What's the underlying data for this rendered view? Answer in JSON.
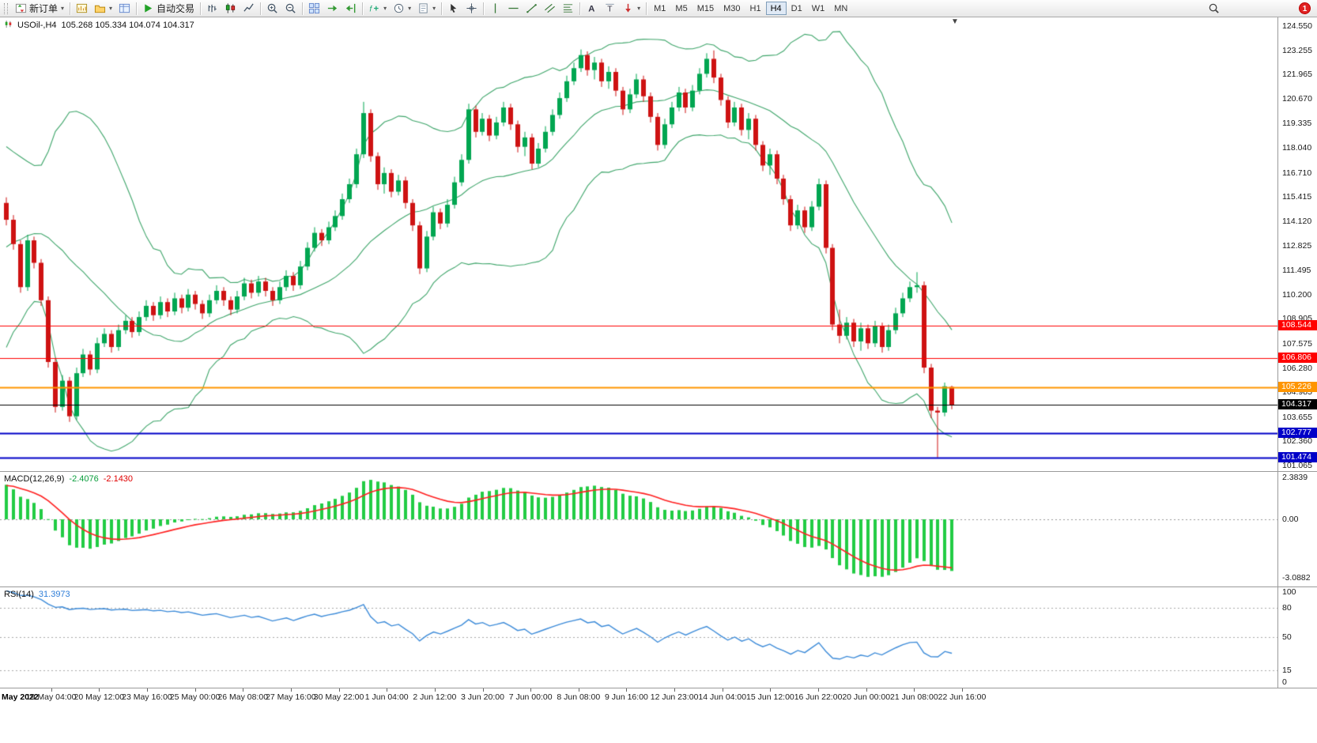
{
  "toolbar": {
    "new_order_label": "新订单",
    "autotrading_label": "自动交易",
    "timeframes": {
      "items": [
        "M1",
        "M5",
        "M15",
        "M30",
        "H1",
        "H4",
        "D1",
        "W1",
        "MN"
      ],
      "active": "H4"
    },
    "notification_badge": "1",
    "groups": [
      {
        "buttons": [
          {
            "name": "new-order-button",
            "icon": "new-order-icon",
            "label": "新订单",
            "dropdown": true
          }
        ]
      },
      {
        "buttons": [
          {
            "name": "chart-window-button",
            "icon": "chart-window-icon"
          },
          {
            "name": "profiles-button",
            "icon": "profiles-icon",
            "dropdown": true
          },
          {
            "name": "data-window-button",
            "icon": "data-window-icon"
          }
        ]
      },
      {
        "buttons": [
          {
            "name": "autotrading-button",
            "icon": "play-icon",
            "label": "自动交易"
          }
        ]
      },
      {
        "buttons": [
          {
            "name": "bar-chart-button",
            "icon": "bar-chart-icon"
          },
          {
            "name": "candlestick-button",
            "icon": "candlestick-icon"
          },
          {
            "name": "line-chart-button",
            "icon": "line-chart-icon"
          }
        ]
      },
      {
        "buttons": [
          {
            "name": "zoom-in-button",
            "icon": "zoom-in-icon"
          },
          {
            "name": "zoom-out-button",
            "icon": "zoom-out-icon"
          }
        ]
      },
      {
        "buttons": [
          {
            "name": "tile-windows-button",
            "icon": "tile-windows-icon"
          },
          {
            "name": "auto-scroll-button",
            "icon": "auto-scroll-icon"
          },
          {
            "name": "chart-shift-button",
            "icon": "chart-shift-icon"
          }
        ]
      },
      {
        "buttons": [
          {
            "name": "indicators-button",
            "icon": "indicators-icon",
            "dropdown": true
          },
          {
            "name": "periods-button",
            "icon": "periods-icon",
            "dropdown": true
          },
          {
            "name": "templates-button",
            "icon": "templates-icon",
            "dropdown": true
          }
        ]
      },
      {
        "buttons": [
          {
            "name": "cursor-button",
            "icon": "cursor-icon"
          },
          {
            "name": "crosshair-button",
            "icon": "crosshair-icon"
          }
        ]
      },
      {
        "buttons": [
          {
            "name": "vertical-line-button",
            "icon": "vertical-line-icon"
          },
          {
            "name": "horizontal-line-button",
            "icon": "horizontal-line-icon"
          },
          {
            "name": "trendline-button",
            "icon": "trendline-icon"
          },
          {
            "name": "channel-button",
            "icon": "channel-icon"
          },
          {
            "name": "fibonacci-button",
            "icon": "fibonacci-icon"
          }
        ]
      },
      {
        "buttons": [
          {
            "name": "text-button",
            "icon": "text-icon"
          },
          {
            "name": "label-button",
            "icon": "label-icon"
          },
          {
            "name": "arrows-button",
            "icon": "arrow-icon",
            "dropdown": true
          }
        ]
      },
      {
        "type": "timeframes"
      }
    ]
  },
  "chart": {
    "symbol_info": "USOil-,H4",
    "ohlc_text": "105.268 105.334 104.074 104.317"
  },
  "macd_panel": {
    "label": "MACD(12,26,9)",
    "value_main": "-2.4076",
    "value_signal": "-2.1430"
  },
  "rsi_panel": {
    "label": "RSI(14)",
    "value": "31.3973"
  },
  "chart_data": {
    "type": "candlestick",
    "symbol": "USOil-",
    "timeframe": "H4",
    "last_ohlc": {
      "open": 105.268,
      "high": 105.334,
      "low": 104.074,
      "close": 104.317
    },
    "price_ticks": [
      "124.550",
      "123.255",
      "121.965",
      "120.670",
      "119.335",
      "118.040",
      "116.710",
      "115.415",
      "114.120",
      "112.825",
      "111.495",
      "110.200",
      "108.905",
      "107.575",
      "106.280",
      "104.985",
      "103.655",
      "102.360",
      "101.065"
    ],
    "time_labels": [
      "May 2022",
      "19 May 04:00",
      "20 May 12:00",
      "23 May 16:00",
      "25 May 00:00",
      "26 May 08:00",
      "27 May 16:00",
      "30 May 22:00",
      "1 Jun 04:00",
      "2 Jun 12:00",
      "3 Jun 20:00",
      "7 Jun 00:00",
      "8 Jun 08:00",
      "9 Jun 16:00",
      "12 Jun 23:00",
      "14 Jun 04:00",
      "15 Jun 12:00",
      "16 Jun 22:00",
      "20 Jun 00:00",
      "21 Jun 08:00",
      "22 Jun 16:00"
    ],
    "horizontal_lines": [
      {
        "name": "resistance-upper-line",
        "value": 108.544,
        "label": "108.544",
        "color": "#FF0000",
        "width": 1
      },
      {
        "name": "resistance-lower-line",
        "value": 106.806,
        "label": "106.806",
        "color": "#FF0000",
        "width": 1
      },
      {
        "name": "pivot-line",
        "value": 105.226,
        "label": "105.226",
        "color": "#FF9500",
        "width": 2
      },
      {
        "name": "bid-price-line",
        "value": 104.317,
        "label": "104.317",
        "color": "#000000",
        "width": 1
      },
      {
        "name": "support-upper-line",
        "value": 102.777,
        "label": "102.777",
        "color": "#0000C8",
        "width": 2
      },
      {
        "name": "support-lower-line",
        "value": 101.474,
        "label": "101.474",
        "color": "#0000C8",
        "width": 2
      }
    ],
    "indicators": {
      "bollinger": {
        "period": 20,
        "deviation": 2,
        "color": "#3FA66B"
      },
      "macd": {
        "params": "12,26,9",
        "value": -2.4076,
        "signal_value": -2.143,
        "axis": [
          "2.3839",
          "0.00",
          "-3.0882"
        ],
        "hist_color": "#22CC44",
        "signal_color": "#FF2020"
      },
      "rsi": {
        "period": 14,
        "value": 31.3973,
        "axis": [
          "100",
          "80",
          "50",
          "15",
          "0"
        ],
        "levels": [
          80,
          50,
          15
        ],
        "color": "#3C8BD9"
      }
    },
    "colors": {
      "up": "#00A651",
      "down": "#CE1212",
      "background": "#FFFFFF"
    },
    "indicator_seed_closes": [
      107.6,
      108.2,
      108.8,
      109.5,
      110.1,
      110.8,
      111.4,
      112.0,
      112.7,
      113.3,
      113.9,
      114.4,
      114.9,
      115.3,
      115.7,
      115.9,
      115.6,
      115.2,
      115.4
    ],
    "ohlc": [
      [
        115.1,
        115.4,
        113.9,
        114.2
      ],
      [
        114.2,
        114.45,
        112.6,
        112.9
      ],
      [
        112.9,
        113.1,
        110.3,
        110.6
      ],
      [
        110.6,
        113.4,
        110.4,
        113.1
      ],
      [
        113.1,
        113.3,
        111.6,
        111.9
      ],
      [
        111.9,
        112.1,
        109.6,
        109.9
      ],
      [
        109.9,
        110.1,
        106.3,
        106.6
      ],
      [
        106.6,
        106.8,
        103.9,
        104.2
      ],
      [
        104.2,
        105.9,
        104.0,
        105.6
      ],
      [
        105.6,
        105.8,
        103.4,
        103.7
      ],
      [
        103.7,
        106.3,
        103.5,
        106.0
      ],
      [
        106.0,
        107.3,
        105.8,
        107.0
      ],
      [
        107.0,
        107.2,
        105.9,
        106.2
      ],
      [
        106.2,
        107.9,
        106.0,
        107.6
      ],
      [
        107.6,
        108.4,
        107.4,
        108.1
      ],
      [
        108.1,
        108.3,
        107.1,
        107.4
      ],
      [
        107.4,
        108.6,
        107.2,
        108.3
      ],
      [
        108.3,
        109.1,
        108.1,
        108.8
      ],
      [
        108.8,
        109.0,
        107.9,
        108.2
      ],
      [
        108.2,
        109.3,
        108.0,
        109.0
      ],
      [
        109.0,
        109.9,
        108.8,
        109.6
      ],
      [
        109.6,
        109.8,
        108.8,
        109.1
      ],
      [
        109.1,
        110.1,
        108.9,
        109.8
      ],
      [
        109.8,
        110.0,
        109.0,
        109.3
      ],
      [
        109.3,
        110.3,
        109.1,
        110.0
      ],
      [
        110.0,
        110.2,
        109.2,
        109.5
      ],
      [
        109.5,
        110.5,
        109.3,
        110.2
      ],
      [
        110.2,
        110.4,
        109.4,
        109.7
      ],
      [
        109.7,
        109.9,
        108.9,
        109.2
      ],
      [
        109.2,
        110.2,
        109.0,
        109.9
      ],
      [
        109.9,
        110.7,
        109.7,
        110.4
      ],
      [
        110.4,
        110.6,
        109.6,
        109.9
      ],
      [
        109.9,
        110.1,
        109.1,
        109.4
      ],
      [
        109.4,
        110.4,
        109.2,
        110.1
      ],
      [
        110.1,
        111.1,
        109.9,
        110.8
      ],
      [
        110.8,
        111.0,
        110.0,
        110.3
      ],
      [
        110.3,
        111.2,
        110.1,
        110.9
      ],
      [
        110.9,
        111.1,
        110.1,
        110.4
      ],
      [
        110.4,
        110.6,
        109.6,
        109.9
      ],
      [
        109.9,
        110.9,
        109.7,
        110.6
      ],
      [
        110.6,
        111.5,
        110.4,
        111.2
      ],
      [
        111.2,
        111.4,
        110.4,
        110.7
      ],
      [
        110.7,
        112.0,
        110.5,
        111.7
      ],
      [
        111.7,
        113.0,
        111.5,
        112.7
      ],
      [
        112.7,
        113.8,
        112.5,
        113.5
      ],
      [
        113.5,
        113.7,
        112.8,
        113.1
      ],
      [
        113.1,
        114.1,
        112.9,
        113.8
      ],
      [
        113.8,
        114.7,
        113.6,
        114.4
      ],
      [
        114.4,
        115.6,
        114.2,
        115.3
      ],
      [
        115.3,
        116.4,
        115.1,
        116.1
      ],
      [
        116.1,
        118.0,
        115.9,
        117.7
      ],
      [
        117.7,
        120.5,
        117.5,
        119.9
      ],
      [
        119.9,
        120.1,
        117.3,
        117.6
      ],
      [
        117.6,
        117.8,
        115.8,
        116.1
      ],
      [
        116.1,
        117.0,
        115.6,
        116.7
      ],
      [
        116.7,
        116.9,
        115.4,
        115.7
      ],
      [
        115.7,
        116.6,
        115.5,
        116.3
      ],
      [
        116.3,
        116.5,
        114.8,
        115.1
      ],
      [
        115.1,
        115.3,
        113.6,
        113.9
      ],
      [
        113.9,
        114.1,
        111.3,
        111.6
      ],
      [
        111.6,
        113.6,
        111.4,
        113.3
      ],
      [
        113.3,
        114.9,
        113.1,
        114.6
      ],
      [
        114.6,
        114.8,
        113.7,
        114.0
      ],
      [
        114.0,
        115.3,
        113.8,
        115.0
      ],
      [
        115.0,
        116.5,
        114.8,
        116.2
      ],
      [
        116.2,
        117.7,
        116.0,
        117.4
      ],
      [
        117.4,
        120.4,
        117.2,
        120.1
      ],
      [
        120.1,
        120.3,
        118.6,
        118.9
      ],
      [
        118.9,
        119.9,
        118.7,
        119.6
      ],
      [
        119.6,
        119.8,
        118.4,
        118.7
      ],
      [
        118.7,
        119.7,
        118.5,
        119.4
      ],
      [
        119.4,
        120.5,
        119.2,
        120.2
      ],
      [
        120.2,
        120.4,
        119.0,
        119.3
      ],
      [
        119.3,
        119.5,
        117.8,
        118.1
      ],
      [
        118.1,
        118.9,
        117.6,
        118.6
      ],
      [
        118.6,
        118.8,
        116.9,
        117.2
      ],
      [
        117.2,
        118.3,
        117.0,
        118.0
      ],
      [
        118.0,
        119.2,
        117.8,
        118.9
      ],
      [
        118.9,
        120.1,
        118.7,
        119.8
      ],
      [
        119.8,
        121.0,
        119.6,
        120.7
      ],
      [
        120.7,
        121.9,
        120.5,
        121.6
      ],
      [
        121.6,
        122.6,
        121.4,
        122.3
      ],
      [
        122.3,
        123.3,
        122.1,
        123.0
      ],
      [
        123.0,
        123.2,
        121.9,
        122.2
      ],
      [
        122.2,
        122.9,
        121.7,
        122.6
      ],
      [
        122.6,
        122.8,
        121.3,
        121.6
      ],
      [
        121.6,
        122.4,
        121.2,
        122.1
      ],
      [
        122.1,
        122.3,
        120.8,
        121.1
      ],
      [
        121.1,
        121.3,
        119.8,
        120.1
      ],
      [
        120.1,
        121.2,
        119.9,
        120.9
      ],
      [
        120.9,
        122.0,
        120.7,
        121.7
      ],
      [
        121.7,
        121.9,
        120.5,
        120.8
      ],
      [
        120.8,
        121.0,
        119.4,
        119.7
      ],
      [
        119.7,
        119.9,
        117.9,
        118.2
      ],
      [
        118.2,
        119.6,
        118.0,
        119.3
      ],
      [
        119.3,
        120.5,
        119.1,
        120.2
      ],
      [
        120.2,
        121.3,
        120.0,
        121.0
      ],
      [
        121.0,
        121.2,
        119.9,
        120.2
      ],
      [
        120.2,
        121.4,
        120.0,
        121.1
      ],
      [
        121.1,
        122.3,
        120.9,
        122.0
      ],
      [
        122.0,
        123.1,
        121.8,
        122.8
      ],
      [
        122.8,
        123.25,
        121.5,
        121.8
      ],
      [
        121.8,
        122.0,
        120.3,
        120.6
      ],
      [
        120.6,
        120.8,
        119.1,
        119.4
      ],
      [
        119.4,
        120.5,
        119.2,
        120.2
      ],
      [
        120.2,
        120.4,
        118.7,
        119.0
      ],
      [
        119.0,
        119.9,
        118.5,
        119.6
      ],
      [
        119.6,
        119.8,
        117.9,
        118.2
      ],
      [
        118.2,
        118.4,
        116.8,
        117.1
      ],
      [
        117.1,
        118.0,
        116.6,
        117.7
      ],
      [
        117.7,
        117.9,
        116.1,
        116.4
      ],
      [
        116.4,
        116.6,
        115.0,
        115.3
      ],
      [
        115.3,
        115.5,
        113.6,
        113.9
      ],
      [
        113.9,
        115.0,
        113.7,
        114.7
      ],
      [
        114.7,
        114.9,
        113.5,
        113.8
      ],
      [
        113.8,
        115.2,
        113.6,
        114.9
      ],
      [
        114.9,
        116.4,
        114.7,
        116.1
      ],
      [
        116.1,
        116.3,
        112.4,
        112.7
      ],
      [
        112.7,
        112.9,
        108.3,
        108.6
      ],
      [
        108.6,
        109.4,
        107.6,
        108.0
      ],
      [
        108.0,
        109.0,
        107.8,
        108.7
      ],
      [
        108.7,
        108.9,
        107.4,
        107.7
      ],
      [
        107.7,
        108.7,
        107.2,
        108.4
      ],
      [
        108.4,
        108.6,
        107.3,
        107.6
      ],
      [
        107.6,
        108.8,
        107.4,
        108.5
      ],
      [
        108.5,
        108.7,
        107.1,
        107.4
      ],
      [
        107.4,
        108.6,
        107.2,
        108.3
      ],
      [
        108.3,
        109.5,
        108.1,
        109.2
      ],
      [
        109.2,
        110.3,
        109.0,
        110.0
      ],
      [
        110.0,
        110.9,
        109.8,
        110.6
      ],
      [
        110.6,
        111.4,
        110.3,
        110.7
      ],
      [
        110.7,
        110.9,
        106.0,
        106.3
      ],
      [
        106.3,
        106.5,
        103.6,
        104.0
      ],
      [
        104.0,
        104.2,
        101.5,
        103.9
      ],
      [
        103.9,
        105.5,
        103.7,
        105.3
      ],
      [
        105.268,
        105.334,
        104.074,
        104.317
      ]
    ]
  }
}
